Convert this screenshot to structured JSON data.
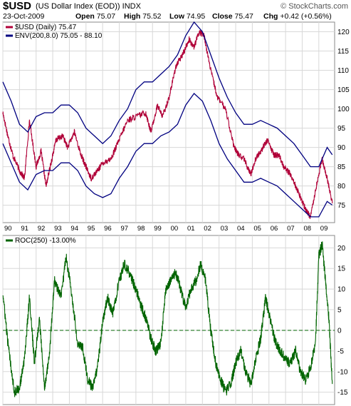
{
  "header": {
    "symbol": "$USD",
    "name": "(US Dollar Index (EOD)) INDX",
    "watermark": "© StockCharts.com",
    "date": "23-Oct-2009",
    "open_label": "Open",
    "open": "75.07",
    "high_label": "High",
    "high": "75.52",
    "low_label": "Low",
    "low": "74.95",
    "close_label": "Close",
    "close": "75.47",
    "chg_label": "Chg",
    "chg": "+0.42 (+0.56%)"
  },
  "chart_data": [
    {
      "type": "line",
      "legend": [
        {
          "label": "$USD (Daily) 75.47",
          "color": "#b00038"
        },
        {
          "label": "ENV(200,8.0) 75.05 - 88.10",
          "color": "#000080"
        }
      ],
      "y_ticks": [
        75,
        80,
        85,
        90,
        95,
        100,
        105,
        110,
        115,
        120
      ],
      "ylim": [
        70.5,
        122.5
      ],
      "x_ticks": [
        "90",
        "91",
        "92",
        "93",
        "94",
        "95",
        "96",
        "97",
        "98",
        "99",
        "00",
        "01",
        "02",
        "03",
        "04",
        "05",
        "06",
        "07",
        "08",
        "09"
      ],
      "xlim": [
        1990.0,
        2009.95
      ],
      "grid": true,
      "series": [
        {
          "name": "$USD (Daily)",
          "color": "#b00038",
          "x": [
            1990.0,
            1990.3,
            1990.6,
            1991.0,
            1991.3,
            1991.6,
            1992.0,
            1992.3,
            1992.6,
            1992.9,
            1993.2,
            1993.6,
            1993.9,
            1994.3,
            1994.7,
            1995.0,
            1995.3,
            1995.7,
            1996.0,
            1996.5,
            1997.0,
            1997.5,
            1998.0,
            1998.6,
            1998.9,
            1999.3,
            1999.6,
            2000.0,
            2000.4,
            2000.8,
            2001.2,
            2001.5,
            2001.8,
            2002.1,
            2002.5,
            2002.9,
            2003.4,
            2003.9,
            2004.2,
            2004.5,
            2004.9,
            2005.2,
            2005.5,
            2005.9,
            2006.3,
            2006.6,
            2006.9,
            2007.3,
            2007.6,
            2007.9,
            2008.2,
            2008.5,
            2008.8,
            2009.2,
            2009.5,
            2009.81
          ],
          "y": [
            99,
            93,
            88,
            84,
            82,
            97,
            85,
            89,
            80,
            86,
            92,
            93,
            90,
            94,
            88,
            85,
            82,
            84,
            86,
            87,
            92,
            97,
            98,
            99,
            94,
            101,
            98,
            103,
            111,
            114,
            118,
            116,
            120,
            119,
            110,
            103,
            100,
            90,
            88,
            87,
            83,
            87,
            89,
            92,
            88,
            88,
            85,
            83,
            80,
            77,
            74,
            72,
            79,
            87,
            82,
            75.5
          ]
        },
        {
          "name": "ENV Upper",
          "color": "#000080",
          "x": [
            1990.0,
            1990.5,
            1991.0,
            1991.5,
            1992.0,
            1992.5,
            1993.0,
            1993.5,
            1994.0,
            1994.5,
            1995.0,
            1995.5,
            1996.0,
            1996.5,
            1997.0,
            1997.5,
            1998.0,
            1998.5,
            1999.0,
            1999.5,
            2000.0,
            2000.5,
            2001.0,
            2001.5,
            2002.0,
            2002.5,
            2003.0,
            2003.5,
            2004.0,
            2004.5,
            2005.0,
            2005.5,
            2006.0,
            2006.5,
            2007.0,
            2007.5,
            2008.0,
            2008.5,
            2009.0,
            2009.5,
            2009.81
          ],
          "y": [
            107,
            102,
            96,
            94,
            98,
            99,
            99,
            101,
            101,
            99,
            95,
            93,
            91,
            93,
            97,
            100,
            105,
            107,
            107,
            109,
            111,
            114,
            119,
            123,
            120,
            114,
            108,
            103,
            99,
            96,
            96,
            97,
            96,
            95,
            93,
            91,
            88,
            85,
            85,
            90,
            88.1
          ]
        },
        {
          "name": "ENV Lower",
          "color": "#000080",
          "x": [
            1990.0,
            1990.5,
            1991.0,
            1991.5,
            1992.0,
            1992.5,
            1993.0,
            1993.5,
            1994.0,
            1994.5,
            1995.0,
            1995.5,
            1996.0,
            1996.5,
            1997.0,
            1997.5,
            1998.0,
            1998.5,
            1999.0,
            1999.5,
            2000.0,
            2000.5,
            2001.0,
            2001.5,
            2002.0,
            2002.5,
            2003.0,
            2003.5,
            2004.0,
            2004.5,
            2005.0,
            2005.5,
            2006.0,
            2006.5,
            2007.0,
            2007.5,
            2008.0,
            2008.5,
            2009.0,
            2009.5,
            2009.81
          ],
          "y": [
            91,
            86,
            81,
            79,
            83,
            84,
            84,
            86,
            86,
            84,
            80,
            78,
            77,
            78,
            82,
            85,
            89,
            91,
            91,
            93,
            94,
            96,
            101,
            104,
            102,
            97,
            91,
            87,
            84,
            81,
            81,
            82,
            81,
            80,
            78,
            76,
            74,
            72,
            72,
            76,
            75.05
          ]
        }
      ]
    },
    {
      "type": "line",
      "legend": [
        {
          "label": "ROC(250) -13.00%",
          "color": "#006400"
        }
      ],
      "y_ticks": [
        -15,
        -10,
        -5,
        0,
        5,
        10,
        15,
        20
      ],
      "ylim": [
        -18,
        23
      ],
      "x_ticks": [
        "90",
        "91",
        "92",
        "93",
        "94",
        "95",
        "96",
        "97",
        "98",
        "99",
        "00",
        "01",
        "02",
        "03",
        "04",
        "05",
        "06",
        "07",
        "08",
        "09"
      ],
      "xlim": [
        1990.0,
        2009.95
      ],
      "grid": true,
      "zero_line": {
        "value": 0,
        "color": "#006400",
        "style": "dashed"
      },
      "series": [
        {
          "name": "ROC(250)",
          "color": "#006400",
          "x": [
            1990.0,
            1990.3,
            1990.7,
            1991.0,
            1991.3,
            1991.6,
            1991.9,
            1992.2,
            1992.5,
            1992.8,
            1993.1,
            1993.5,
            1993.8,
            1994.1,
            1994.5,
            1994.8,
            1995.1,
            1995.4,
            1995.7,
            1996.0,
            1996.3,
            1996.6,
            1997.0,
            1997.3,
            1997.6,
            1998.0,
            1998.3,
            1998.6,
            1998.9,
            1999.2,
            1999.5,
            1999.8,
            2000.1,
            2000.4,
            2000.7,
            2001.0,
            2001.3,
            2001.6,
            2001.9,
            2002.2,
            2002.5,
            2002.8,
            2003.1,
            2003.4,
            2003.7,
            2004.0,
            2004.3,
            2004.6,
            2004.9,
            2005.2,
            2005.5,
            2005.8,
            2006.1,
            2006.4,
            2006.7,
            2007.0,
            2007.3,
            2007.6,
            2007.9,
            2008.2,
            2008.5,
            2008.8,
            2009.0,
            2009.2,
            2009.4,
            2009.6,
            2009.81
          ],
          "y": [
            9,
            -3,
            -15,
            -14,
            -7,
            8,
            -8,
            3,
            -14,
            -6,
            12,
            8,
            18,
            10,
            -3,
            -4,
            -12,
            -14,
            -9,
            2,
            8,
            4,
            12,
            16,
            14,
            10,
            6,
            3,
            -2,
            -5,
            -3,
            10,
            12,
            14,
            10,
            5,
            10,
            12,
            16,
            12,
            0,
            -8,
            -12,
            -15,
            -13,
            -8,
            -5,
            -10,
            -13,
            -7,
            -2,
            8,
            2,
            -3,
            -5,
            -7,
            -8,
            -5,
            -10,
            -12,
            -9,
            -3,
            18,
            21,
            12,
            3,
            -13
          ]
        }
      ]
    }
  ]
}
